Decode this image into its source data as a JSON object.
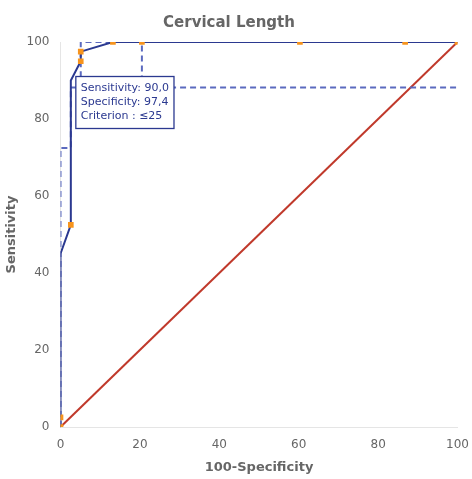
{
  "chart_data": {
    "type": "line",
    "title": "Cervical Length",
    "xlabel": "100-Specificity",
    "ylabel": "Sensitivity",
    "xlim": [
      0,
      100
    ],
    "ylim": [
      0,
      100
    ],
    "xticks": [
      0,
      20,
      40,
      60,
      80,
      100
    ],
    "yticks": [
      0,
      20,
      40,
      60,
      80,
      100
    ],
    "grid": false,
    "series": [
      {
        "type": "line",
        "color": "#c0392b",
        "line_style": "solid",
        "x": [
          0,
          100
        ],
        "values": [
          0,
          100
        ]
      },
      {
        "type": "line",
        "color": "#5b6abf",
        "line_style": "dashed",
        "x": [
          0,
          0,
          2.6,
          2.6,
          5.1,
          5.1,
          13.2,
          13.2,
          20.5,
          20.5,
          86.8,
          86.8,
          100
        ],
        "values": [
          0,
          72.5,
          72.5,
          88.2,
          88.2,
          100,
          100,
          100,
          100,
          88.2,
          88.2,
          88.2,
          88.2
        ]
      },
      {
        "type": "line",
        "color": "#2b3990",
        "line_style": "solid",
        "x": [
          0,
          0,
          0,
          0,
          0,
          2.6,
          2.6,
          5.1,
          5.1,
          13.2,
          20.5,
          60.3,
          86.8,
          100
        ],
        "values": [
          0,
          2.5,
          17.5,
          30,
          45,
          52.5,
          90,
          95,
          97.5,
          100,
          100,
          100,
          100,
          100
        ]
      },
      {
        "type": "scatter",
        "color": "#f7941d",
        "marker": "square",
        "x": [
          0,
          0,
          2.6,
          5.1,
          5.1,
          13.2,
          20.5,
          60.3,
          86.8,
          100
        ],
        "values": [
          0,
          2.5,
          52.5,
          95,
          97.5,
          100,
          100,
          100,
          100,
          100
        ]
      }
    ],
    "annotations": [
      {
        "text": "Sensitivity: 90,0\nSpecificity: 97,4\nCriterion : ≤25",
        "x": 2.6,
        "y": 90,
        "color": "#2b3990"
      }
    ]
  }
}
